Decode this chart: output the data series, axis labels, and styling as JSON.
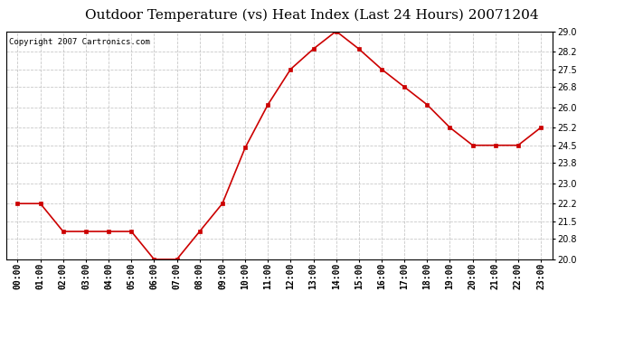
{
  "title": "Outdoor Temperature (vs) Heat Index (Last 24 Hours) 20071204",
  "copyright": "Copyright 2007 Cartronics.com",
  "x_labels": [
    "00:00",
    "01:00",
    "02:00",
    "03:00",
    "04:00",
    "05:00",
    "06:00",
    "07:00",
    "08:00",
    "09:00",
    "10:00",
    "11:00",
    "12:00",
    "13:00",
    "14:00",
    "15:00",
    "16:00",
    "17:00",
    "18:00",
    "19:00",
    "20:00",
    "21:00",
    "22:00",
    "23:00"
  ],
  "y_values": [
    22.2,
    22.2,
    21.1,
    21.1,
    21.1,
    21.1,
    20.0,
    20.0,
    21.1,
    22.2,
    24.4,
    26.1,
    27.5,
    28.3,
    29.0,
    28.3,
    27.5,
    26.8,
    26.1,
    25.2,
    24.5,
    24.5,
    24.5,
    25.2
  ],
  "ylim_min": 20.0,
  "ylim_max": 29.0,
  "yticks": [
    20.0,
    20.8,
    21.5,
    22.2,
    23.0,
    23.8,
    24.5,
    25.2,
    26.0,
    26.8,
    27.5,
    28.2,
    29.0
  ],
  "line_color": "#cc0000",
  "marker": "s",
  "marker_size": 2.5,
  "bg_color": "#ffffff",
  "plot_bg_color": "#ffffff",
  "grid_color": "#bbbbbb",
  "title_fontsize": 11,
  "tick_fontsize": 7,
  "copyright_fontsize": 6.5
}
